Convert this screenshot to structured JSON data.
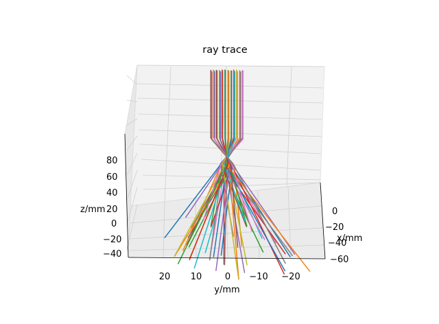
{
  "chart_data": {
    "type": "line",
    "projection": "3d",
    "title": "ray trace",
    "xlabel": "x/mm",
    "ylabel": "y/mm",
    "zlabel": "z/mm",
    "xlim": [
      -60,
      10
    ],
    "ylim": [
      -30,
      30
    ],
    "zlim": [
      -45,
      100
    ],
    "x_ticks": [
      "0",
      "−20",
      "−40",
      "−60"
    ],
    "y_ticks": [
      "20",
      "10",
      "0",
      "−10",
      "−20"
    ],
    "z_ticks": [
      "80",
      "60",
      "40",
      "20",
      "0",
      "−20",
      "−40"
    ],
    "grid": true,
    "colors": [
      "#1f77b4",
      "#ff7f0e",
      "#2ca02c",
      "#d62728",
      "#9467bd",
      "#8c564b",
      "#e377c2",
      "#7f7f7f",
      "#bcbd22",
      "#17becf"
    ],
    "rays": {
      "count": 48,
      "bundle_half_width_mm": 5,
      "z_top_mm": 95,
      "z_focus_mm": 38,
      "z_bottom_mm": -40,
      "spread_at_bottom_mm": [
        -27,
        27
      ]
    }
  }
}
